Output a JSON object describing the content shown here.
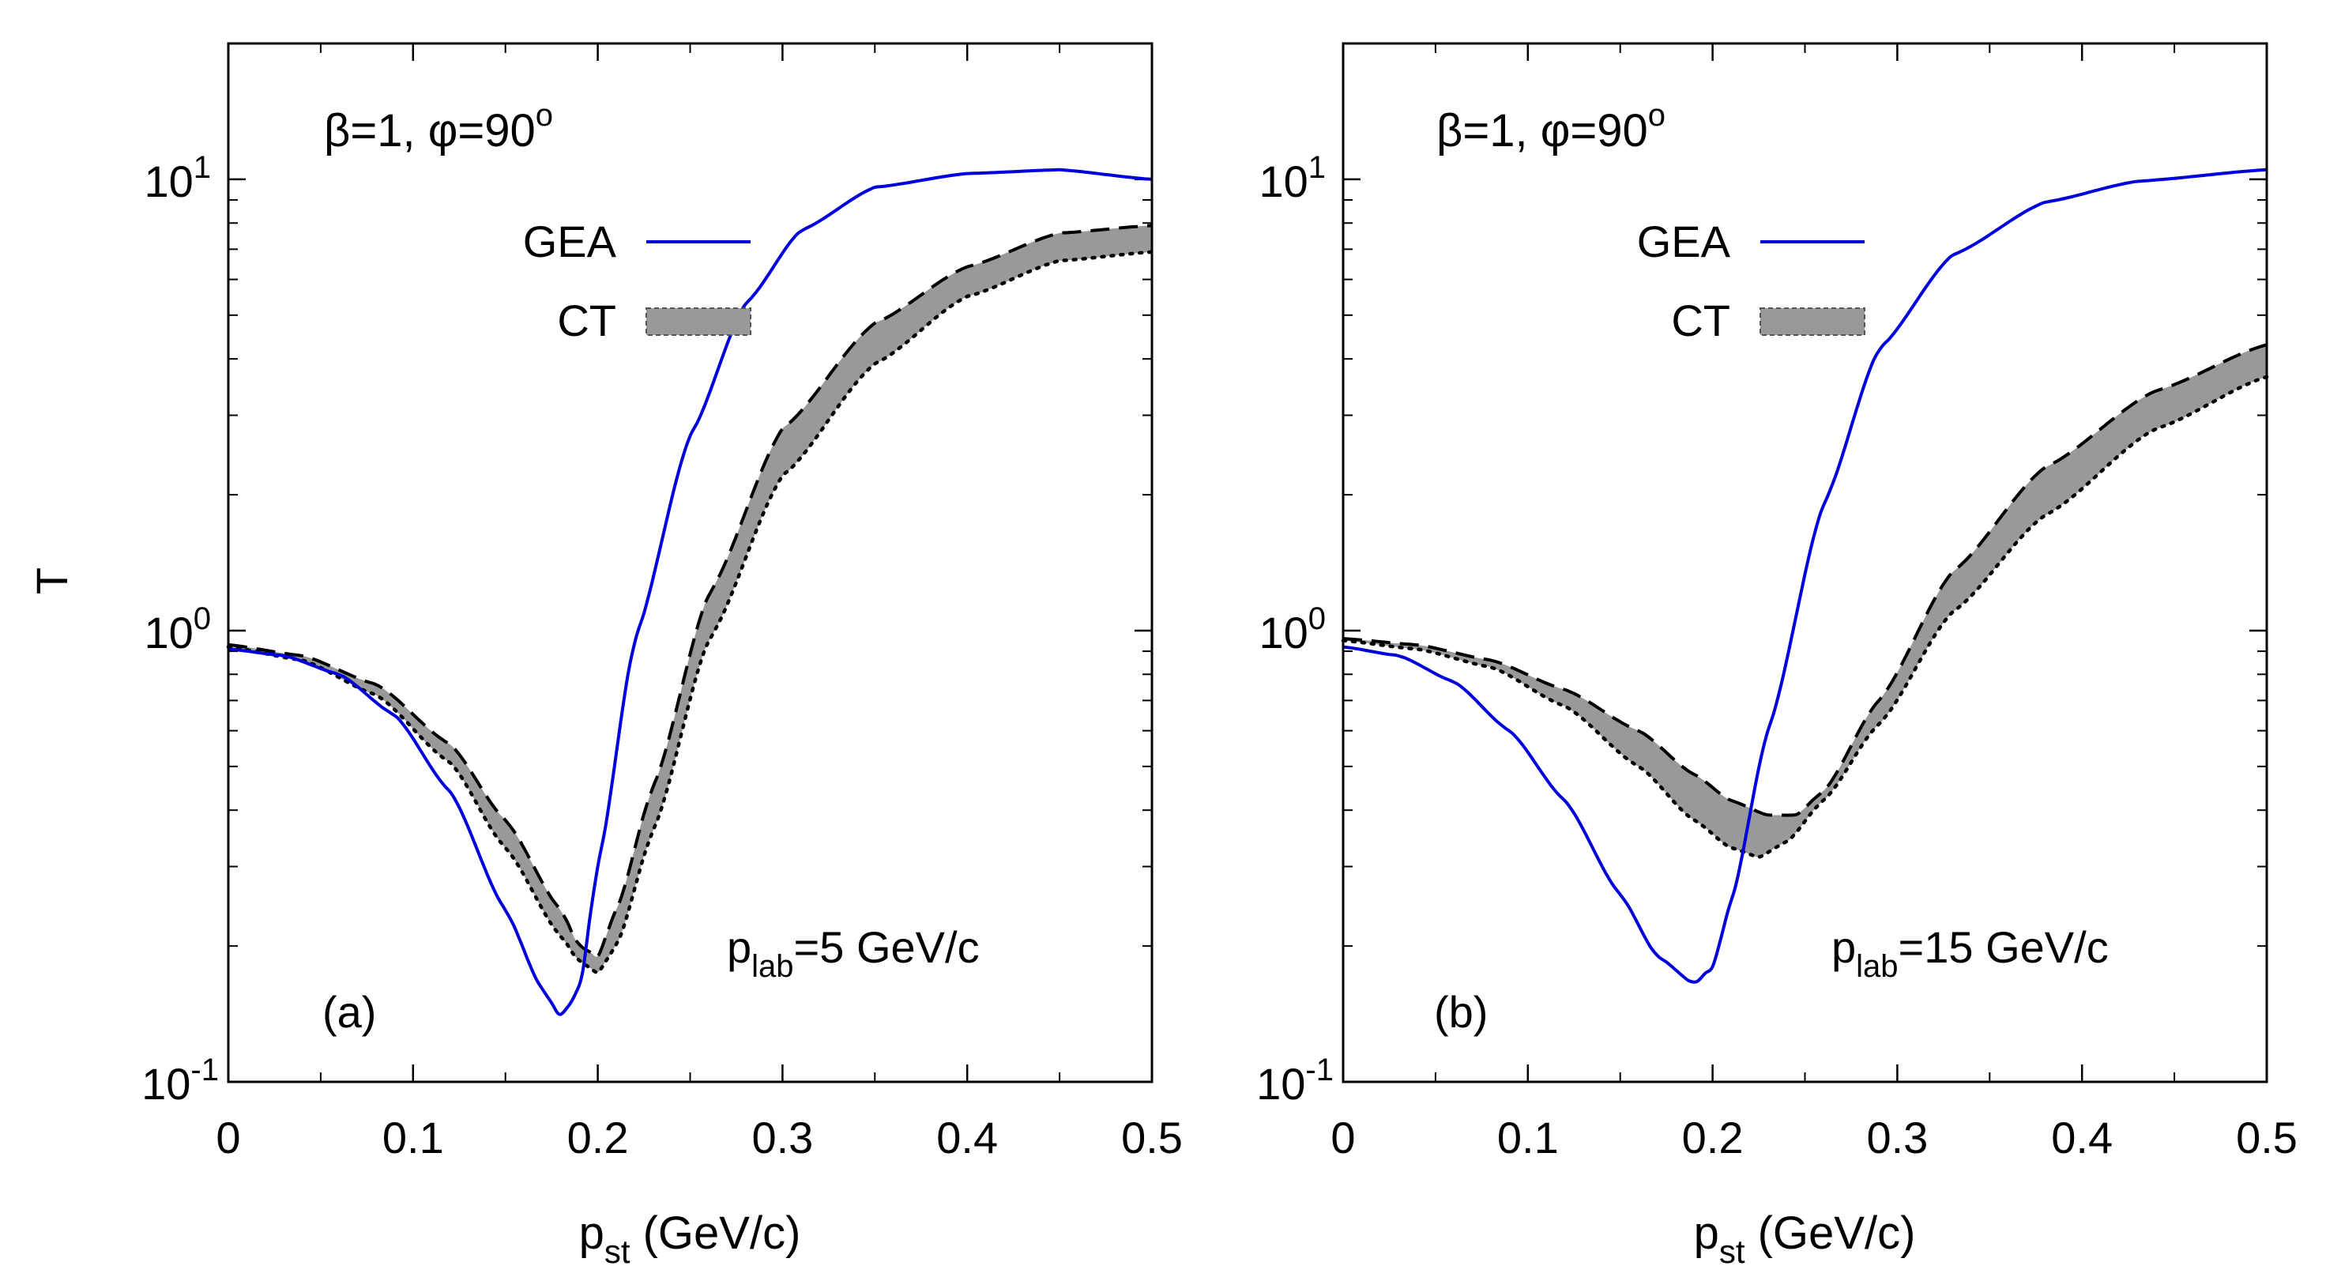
{
  "figure": {
    "ylabel": "T",
    "xlabel_main": "p",
    "xlabel_sub": "st",
    "xlabel_units": " (GeV/c)"
  },
  "legend": {
    "gea_label": "GEA",
    "ct_label": "CT"
  },
  "colors": {
    "gea": "#0000dd",
    "ct_band": "#999999",
    "axis": "#000000"
  },
  "chart_data": [
    {
      "type": "line",
      "panel_label": "(a)",
      "annotation_main": "β=1, φ=90",
      "annotation_sup": "o",
      "plab_main": "p",
      "plab_sub": "lab",
      "plab_value": "=5 GeV/c",
      "xlim": [
        0,
        0.5
      ],
      "ylim": [
        0.1,
        20
      ],
      "yscale": "log",
      "xticks": [
        "0",
        "0.1",
        "0.2",
        "0.3",
        "0.4",
        "0.5"
      ],
      "yticks": [
        {
          "base": "10",
          "exp": "-1",
          "value": 0.1
        },
        {
          "base": "10",
          "exp": "0",
          "value": 1
        },
        {
          "base": "10",
          "exp": "1",
          "value": 10
        }
      ],
      "series": [
        {
          "name": "GEA",
          "x": [
            0,
            0.03,
            0.06,
            0.09,
            0.12,
            0.15,
            0.17,
            0.18,
            0.19,
            0.2,
            0.22,
            0.25,
            0.28,
            0.31,
            0.35,
            0.4,
            0.45,
            0.5
          ],
          "y": [
            0.91,
            0.88,
            0.8,
            0.65,
            0.44,
            0.24,
            0.16,
            0.14,
            0.16,
            0.3,
            0.95,
            2.7,
            5.3,
            7.7,
            9.6,
            10.3,
            10.5,
            10.0
          ]
        },
        {
          "name": "CT upper (dashed)",
          "x": [
            0,
            0.04,
            0.08,
            0.12,
            0.15,
            0.18,
            0.19,
            0.2,
            0.21,
            0.23,
            0.26,
            0.3,
            0.35,
            0.4,
            0.45,
            0.5
          ],
          "y": [
            0.93,
            0.88,
            0.76,
            0.56,
            0.38,
            0.24,
            0.2,
            0.19,
            0.24,
            0.45,
            1.2,
            2.8,
            4.8,
            6.4,
            7.6,
            7.9
          ]
        },
        {
          "name": "CT lower (dotted)",
          "x": [
            0,
            0.04,
            0.08,
            0.12,
            0.15,
            0.18,
            0.19,
            0.2,
            0.21,
            0.23,
            0.26,
            0.3,
            0.35,
            0.4,
            0.45,
            0.5
          ],
          "y": [
            0.92,
            0.86,
            0.72,
            0.51,
            0.33,
            0.21,
            0.185,
            0.175,
            0.2,
            0.36,
            0.95,
            2.2,
            3.9,
            5.5,
            6.6,
            6.9
          ]
        }
      ]
    },
    {
      "type": "line",
      "panel_label": "(b)",
      "annotation_main": "β=1, φ=90",
      "annotation_sup": "o",
      "plab_main": "p",
      "plab_sub": "lab",
      "plab_value": "=15 GeV/c",
      "xlim": [
        0,
        0.5
      ],
      "ylim": [
        0.1,
        20
      ],
      "yscale": "log",
      "xticks": [
        "0",
        "0.1",
        "0.2",
        "0.3",
        "0.4",
        "0.5"
      ],
      "yticks": [
        {
          "base": "10",
          "exp": "-1",
          "value": 0.1
        },
        {
          "base": "10",
          "exp": "0",
          "value": 1
        },
        {
          "base": "10",
          "exp": "1",
          "value": 10
        }
      ],
      "series": [
        {
          "name": "GEA",
          "x": [
            0,
            0.03,
            0.06,
            0.09,
            0.12,
            0.15,
            0.17,
            0.19,
            0.2,
            0.21,
            0.23,
            0.26,
            0.29,
            0.33,
            0.38,
            0.43,
            0.5
          ],
          "y": [
            0.92,
            0.88,
            0.77,
            0.6,
            0.42,
            0.26,
            0.19,
            0.165,
            0.18,
            0.25,
            0.6,
            1.9,
            4.2,
            6.8,
            8.9,
            9.9,
            10.5
          ]
        },
        {
          "name": "CT upper (dashed)",
          "x": [
            0,
            0.04,
            0.08,
            0.12,
            0.16,
            0.19,
            0.21,
            0.23,
            0.245,
            0.26,
            0.29,
            0.33,
            0.38,
            0.44,
            0.5
          ],
          "y": [
            0.96,
            0.93,
            0.86,
            0.74,
            0.6,
            0.48,
            0.42,
            0.39,
            0.39,
            0.44,
            0.7,
            1.35,
            2.3,
            3.4,
            4.3
          ]
        },
        {
          "name": "CT lower (dotted)",
          "x": [
            0,
            0.04,
            0.08,
            0.12,
            0.16,
            0.19,
            0.21,
            0.225,
            0.24,
            0.26,
            0.29,
            0.33,
            0.38,
            0.44,
            0.5
          ],
          "y": [
            0.95,
            0.91,
            0.83,
            0.68,
            0.5,
            0.38,
            0.33,
            0.315,
            0.34,
            0.42,
            0.62,
            1.1,
            1.8,
            2.8,
            3.65
          ]
        }
      ]
    }
  ]
}
